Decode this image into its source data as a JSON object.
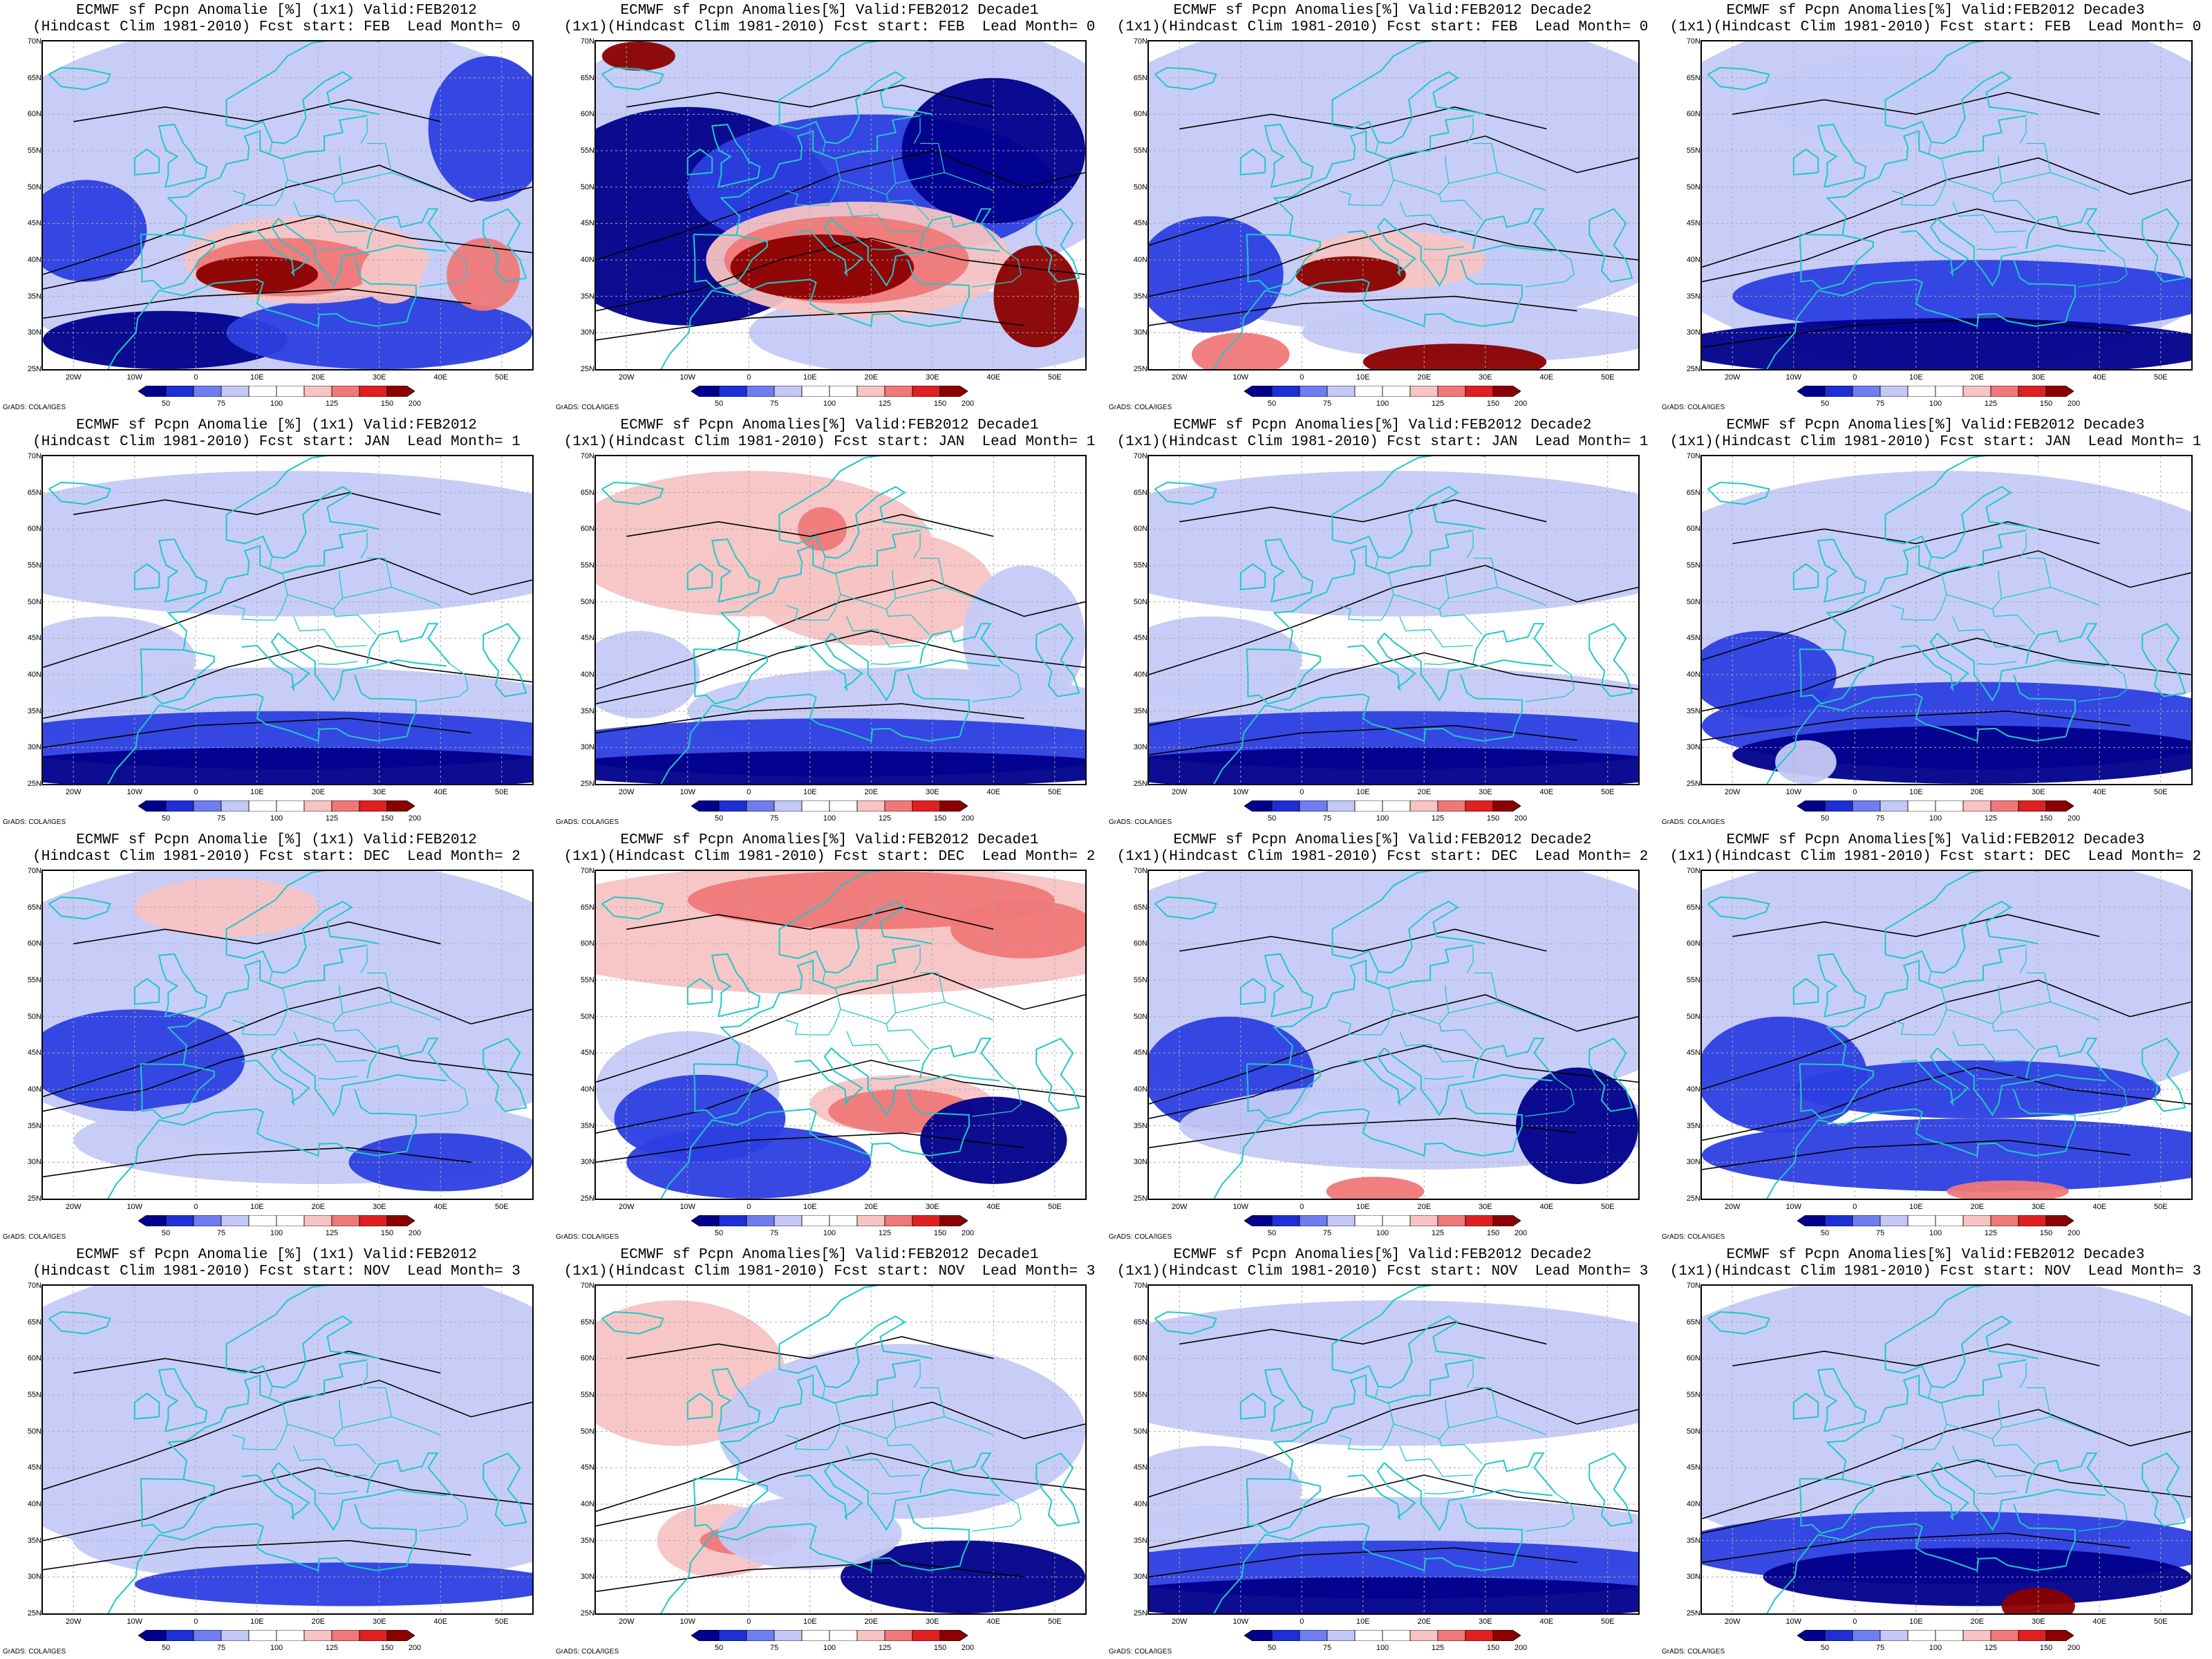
{
  "panels": [
    {
      "title1": "ECMWF sf Pcpn Anomalie [%] (1x1) Valid:FEB2012",
      "title2": "(Hindcast Clim 1981-2010) Fcst start: FEB  Lead Month= 0",
      "pattern": "dry-south-wet-med-strong"
    },
    {
      "title1": "ECMWF sf Pcpn Anomalies[%] Valid:FEB2012 Decade1",
      "title2": "(1x1)(Hindcast Clim 1981-2010) Fcst start: FEB  Lead Month= 0",
      "pattern": "wet-med-very-strong"
    },
    {
      "title1": "ECMWF sf Pcpn Anomalies[%] Valid:FEB2012 Decade2",
      "title2": "(1x1)(Hindcast Clim 1981-2010) Fcst start: FEB  Lead Month= 0",
      "pattern": "wet-med-africa"
    },
    {
      "title1": "ECMWF sf Pcpn Anomalies[%] Valid:FEB2012 Decade3",
      "title2": "(1x1)(Hindcast Clim 1981-2010) Fcst start: FEB  Lead Month= 0",
      "pattern": "dry-overall"
    },
    {
      "title1": "ECMWF sf Pcpn Anomalie [%] (1x1) Valid:FEB2012",
      "title2": "(Hindcast Clim 1981-2010) Fcst start: JAN  Lead Month= 1",
      "pattern": "dry-south"
    },
    {
      "title1": "ECMWF sf Pcpn Anomalies[%] Valid:FEB2012 Decade1",
      "title2": "(1x1)(Hindcast Clim 1981-2010) Fcst start: JAN  Lead Month= 1",
      "pattern": "wet-north-light"
    },
    {
      "title1": "ECMWF sf Pcpn Anomalies[%] Valid:FEB2012 Decade2",
      "title2": "(1x1)(Hindcast Clim 1981-2010) Fcst start: JAN  Lead Month= 1",
      "pattern": "dry-south"
    },
    {
      "title1": "ECMWF sf Pcpn Anomalies[%] Valid:FEB2012 Decade3",
      "title2": "(1x1)(Hindcast Clim 1981-2010) Fcst start: JAN  Lead Month= 1",
      "pattern": "dry-south-more"
    },
    {
      "title1": "ECMWF sf Pcpn Anomalie [%] (1x1) Valid:FEB2012",
      "title2": "(Hindcast Clim 1981-2010) Fcst start: DEC  Lead Month= 2",
      "pattern": "dry-west"
    },
    {
      "title1": "ECMWF sf Pcpn Anomalies[%] Valid:FEB2012 Decade1",
      "title2": "(1x1)(Hindcast Clim 1981-2010) Fcst start: DEC  Lead Month= 2",
      "pattern": "wet-north-strong"
    },
    {
      "title1": "ECMWF sf Pcpn Anomalies[%] Valid:FEB2012 Decade2",
      "title2": "(1x1)(Hindcast Clim 1981-2010) Fcst start: DEC  Lead Month= 2",
      "pattern": "dry-west-africa"
    },
    {
      "title1": "ECMWF sf Pcpn Anomalies[%] Valid:FEB2012 Decade3",
      "title2": "(1x1)(Hindcast Clim 1981-2010) Fcst start: DEC  Lead Month= 2",
      "pattern": "dry-west-south"
    },
    {
      "title1": "ECMWF sf Pcpn Anomalie [%] (1x1) Valid:FEB2012",
      "title2": "(Hindcast Clim 1981-2010) Fcst start: NOV  Lead Month= 3",
      "pattern": "dry-light"
    },
    {
      "title1": "ECMWF sf Pcpn Anomalies[%] Valid:FEB2012 Decade1",
      "title2": "(1x1)(Hindcast Clim 1981-2010) Fcst start: NOV  Lead Month= 3",
      "pattern": "wet-west-light"
    },
    {
      "title1": "ECMWF sf Pcpn Anomalies[%] Valid:FEB2012 Decade2",
      "title2": "(1x1)(Hindcast Clim 1981-2010) Fcst start: NOV  Lead Month= 3",
      "pattern": "dry-south"
    },
    {
      "title1": "ECMWF sf Pcpn Anomalies[%] Valid:FEB2012 Decade3",
      "title2": "(1x1)(Hindcast Clim 1981-2010) Fcst start: NOV  Lead Month= 3",
      "pattern": "dry-south-wet-africa"
    }
  ],
  "axes": {
    "lat_labels": [
      "70N",
      "65N",
      "60N",
      "55N",
      "50N",
      "45N",
      "40N",
      "35N",
      "30N",
      "25N"
    ],
    "lon_labels": [
      "20W",
      "10W",
      "0",
      "10E",
      "20E",
      "30E",
      "40E",
      "50E"
    ]
  },
  "colorbar": {
    "labels": [
      "50",
      "75",
      "100",
      "125",
      "150",
      "200"
    ],
    "colors": [
      "#00008b",
      "#1f2fd6",
      "#6e7df0",
      "#c4c8f7",
      "#ffffff",
      "#ffffff",
      "#f7c3c3",
      "#f07878",
      "#e02020",
      "#8b0000"
    ]
  },
  "credit": "GrADS: COLA/IGES",
  "palette": {
    "coast": "#20c8c8",
    "contour": "#000000",
    "sea_dry_strong": "#00008b",
    "dry_mid": "#2c3fe0",
    "dry_light": "#c5caf7",
    "wet_light": "#f7c3c3",
    "wet_mid": "#f07878",
    "wet_strong": "#8b0000"
  }
}
